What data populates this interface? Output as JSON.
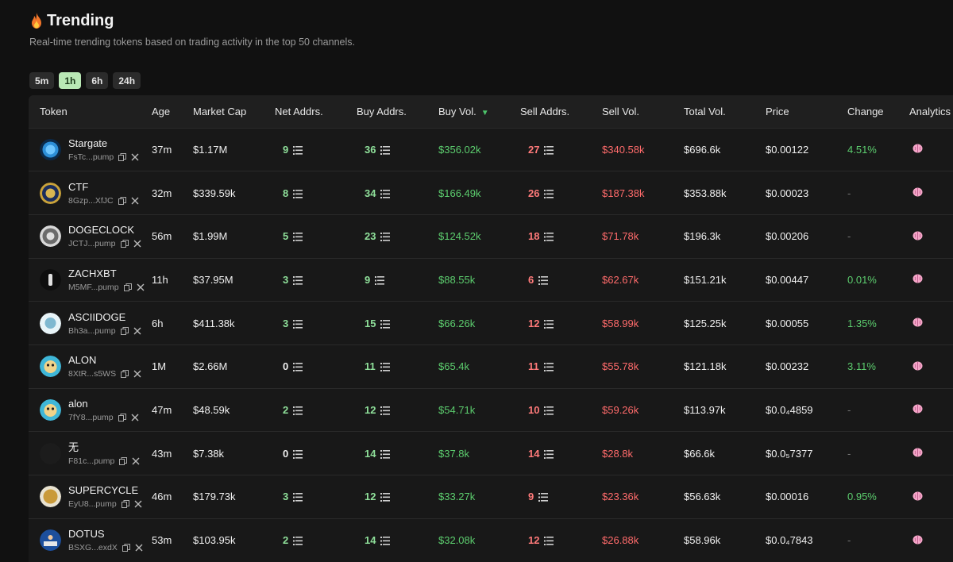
{
  "header": {
    "title": "Trending",
    "subtitle": "Real-time trending tokens based on trading activity in the top 50 channels."
  },
  "timeframes": [
    {
      "label": "5m",
      "active": false
    },
    {
      "label": "1h",
      "active": true
    },
    {
      "label": "6h",
      "active": false
    },
    {
      "label": "24h",
      "active": false
    }
  ],
  "table": {
    "columns": [
      "Token",
      "Age",
      "Market Cap",
      "Net Addrs.",
      "Buy Addrs.",
      "Buy Vol.",
      "Sell Addrs.",
      "Sell Vol.",
      "Total Vol.",
      "Price",
      "Change",
      "Analytics"
    ],
    "sort_column": "Buy Vol.",
    "rows": [
      {
        "name": "Stargate",
        "addr": "FsTc...pump",
        "age": "37m",
        "mcap": "$1.17M",
        "net": "9",
        "buy_addrs": "36",
        "buy_vol": "$356.02k",
        "sell_addrs": "27",
        "sell_vol": "$340.58k",
        "total_vol": "$696.6k",
        "price": "$0.00122",
        "change": "4.51%",
        "avatar": "blue-orb"
      },
      {
        "name": "CTF",
        "addr": "8Gzp...XfJC",
        "age": "32m",
        "mcap": "$339.59k",
        "net": "8",
        "buy_addrs": "34",
        "buy_vol": "$166.49k",
        "sell_addrs": "26",
        "sell_vol": "$187.38k",
        "total_vol": "$353.88k",
        "price": "$0.00023",
        "change": "-",
        "avatar": "seal"
      },
      {
        "name": "DOGECLOCK",
        "addr": "JCTJ...pump",
        "age": "56m",
        "mcap": "$1.99M",
        "net": "5",
        "buy_addrs": "23",
        "buy_vol": "$124.52k",
        "sell_addrs": "18",
        "sell_vol": "$71.78k",
        "total_vol": "$196.3k",
        "price": "$0.00206",
        "change": "-",
        "avatar": "clock"
      },
      {
        "name": "ZACHXBT",
        "addr": "M5MF...pump",
        "age": "11h",
        "mcap": "$37.95M",
        "net": "3",
        "buy_addrs": "9",
        "buy_vol": "$88.55k",
        "sell_addrs": "6",
        "sell_vol": "$62.67k",
        "total_vol": "$151.21k",
        "price": "$0.00447",
        "change": "0.01%",
        "avatar": "dark-figure"
      },
      {
        "name": "ASCIIDOGE",
        "addr": "Bh3a...pump",
        "age": "6h",
        "mcap": "$411.38k",
        "net": "3",
        "buy_addrs": "15",
        "buy_vol": "$66.26k",
        "sell_addrs": "12",
        "sell_vol": "$58.99k",
        "total_vol": "$125.25k",
        "price": "$0.00055",
        "change": "1.35%",
        "avatar": "ascii-dog"
      },
      {
        "name": "ALON",
        "addr": "8XtR...s5WS",
        "age": "1M",
        "mcap": "$2.66M",
        "net": "0",
        "buy_addrs": "11",
        "buy_vol": "$65.4k",
        "sell_addrs": "11",
        "sell_vol": "$55.78k",
        "total_vol": "$121.18k",
        "price": "$0.00232",
        "change": "3.11%",
        "avatar": "cartoon"
      },
      {
        "name": "alon",
        "addr": "7fY8...pump",
        "age": "47m",
        "mcap": "$48.59k",
        "net": "2",
        "buy_addrs": "12",
        "buy_vol": "$54.71k",
        "sell_addrs": "10",
        "sell_vol": "$59.26k",
        "total_vol": "$113.97k",
        "price": "$0.0₄4859",
        "change": "-",
        "avatar": "cartoon"
      },
      {
        "name": "无",
        "addr": "F81c...pump",
        "age": "43m",
        "mcap": "$7.38k",
        "net": "0",
        "buy_addrs": "14",
        "buy_vol": "$37.8k",
        "sell_addrs": "14",
        "sell_vol": "$28.8k",
        "total_vol": "$66.6k",
        "price": "$0.0₅7377",
        "change": "-",
        "avatar": "black"
      },
      {
        "name": "SUPERCYCLE",
        "addr": "EyU8...pump",
        "age": "46m",
        "mcap": "$179.73k",
        "net": "3",
        "buy_addrs": "12",
        "buy_vol": "$33.27k",
        "sell_addrs": "9",
        "sell_vol": "$23.36k",
        "total_vol": "$56.63k",
        "price": "$0.00016",
        "change": "0.95%",
        "avatar": "gold"
      },
      {
        "name": "DOTUS",
        "addr": "BSXG...exdX",
        "age": "53m",
        "mcap": "$103.95k",
        "net": "2",
        "buy_addrs": "14",
        "buy_vol": "$32.08k",
        "sell_addrs": "12",
        "sell_vol": "$26.88k",
        "total_vol": "$58.96k",
        "price": "$0.0₄7843",
        "change": "-",
        "avatar": "flag"
      }
    ]
  },
  "colors": {
    "background": "#111111",
    "table_bg": "#181818",
    "green": "#5ccd6e",
    "red": "#ff6b6b",
    "active_tab": "#b9e8b5"
  },
  "icons": {
    "title": "fire-icon",
    "copy": "copy-icon",
    "social": "x-icon",
    "addresses": "list-icon",
    "analytics": "brain-icon",
    "sort": "sort-down-icon"
  }
}
